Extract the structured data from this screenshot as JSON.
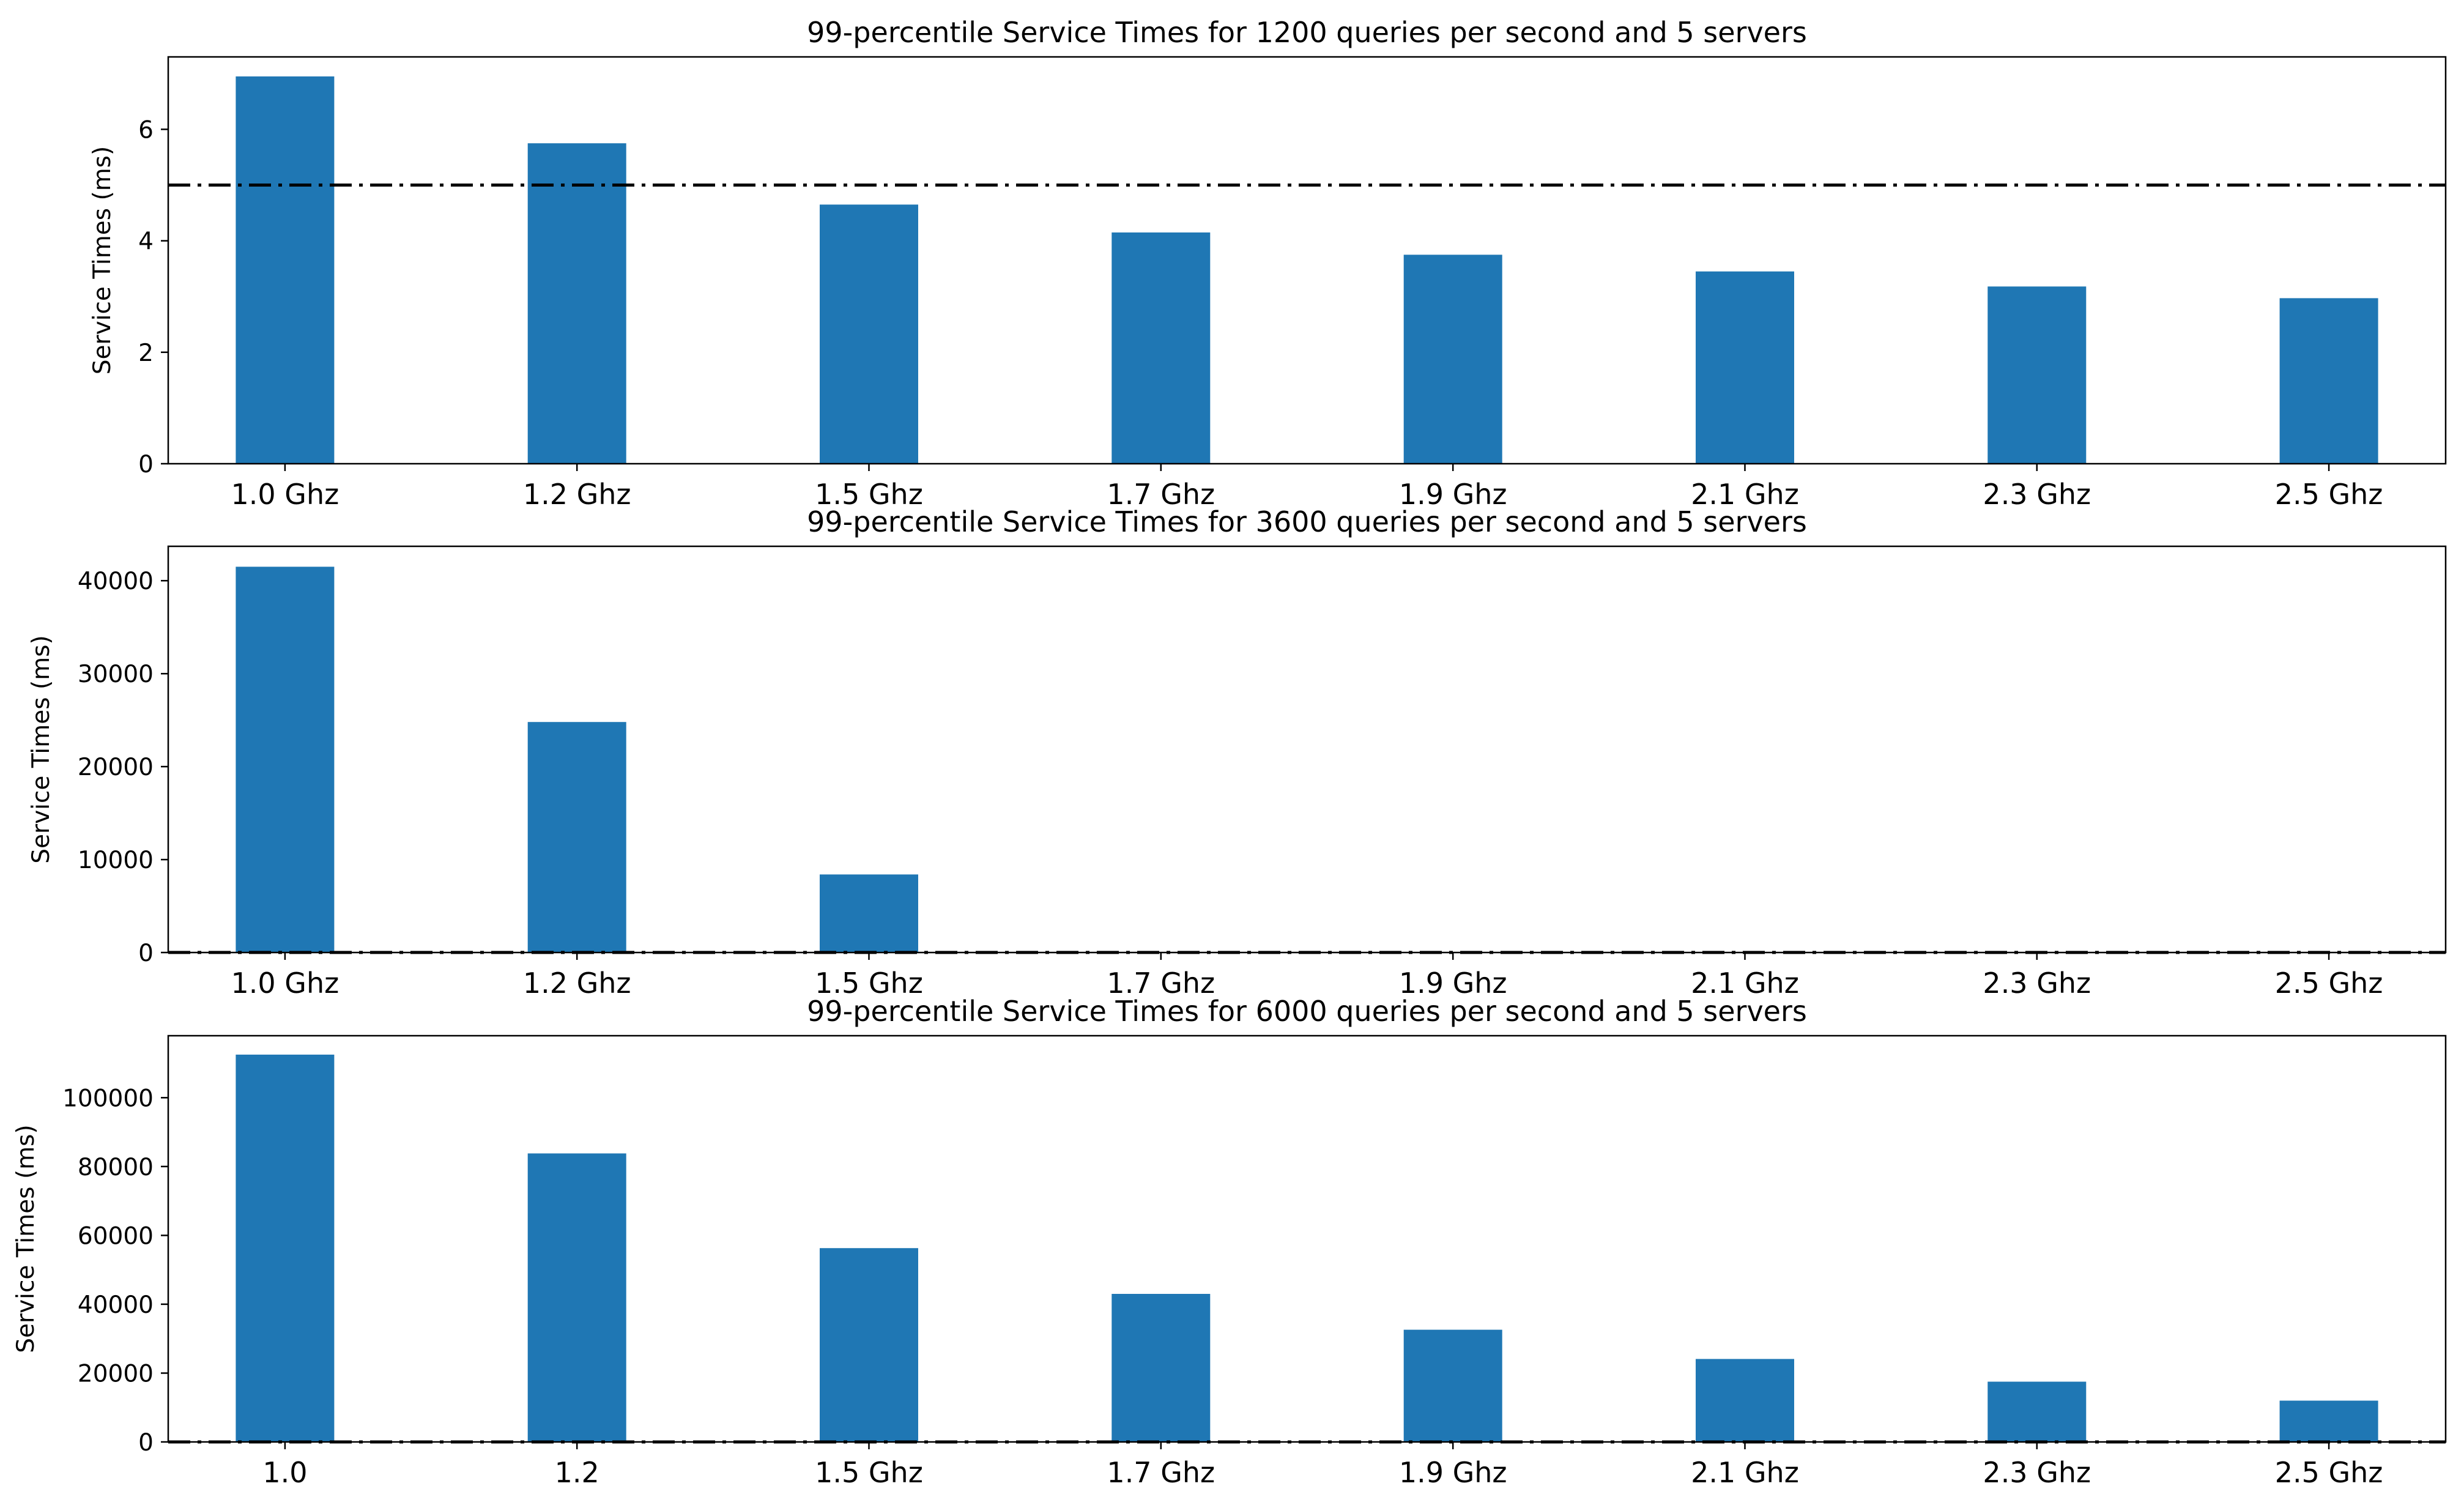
{
  "chart_data": [
    {
      "type": "bar",
      "title": "99-percentile Service Times for 1200 queries per second and 5 servers",
      "ylabel": "Service Times (ms)",
      "xlabel": "",
      "categories": [
        "1.0 Ghz",
        "1.2 Ghz",
        "1.5 Ghz",
        "1.7 Ghz",
        "1.9 Ghz",
        "2.1 Ghz",
        "2.3 Ghz",
        "2.5 Ghz"
      ],
      "values": [
        6.95,
        5.75,
        4.65,
        4.15,
        3.75,
        3.45,
        3.18,
        2.97
      ],
      "reference_line": 5,
      "ylim": [
        0,
        7.3
      ],
      "yticks": [
        0,
        2,
        4,
        6
      ],
      "ytick_labels": [
        "0",
        "2",
        "4",
        "6"
      ],
      "grid": false,
      "bar_color": "#1f77b4"
    },
    {
      "type": "bar",
      "title": "99-percentile Service Times for 3600 queries per second and 5 servers",
      "ylabel": "Service Times (ms)",
      "xlabel": "",
      "categories": [
        "1.0 Ghz",
        "1.2 Ghz",
        "1.5 Ghz",
        "1.7 Ghz",
        "1.9 Ghz",
        "2.1 Ghz",
        "2.3 Ghz",
        "2.5 Ghz"
      ],
      "values": [
        41500,
        24800,
        8400,
        0,
        0,
        0,
        0,
        0
      ],
      "reference_line": 5,
      "ylim": [
        0,
        43700
      ],
      "yticks": [
        0,
        10000,
        20000,
        30000,
        40000
      ],
      "ytick_labels": [
        "0",
        "10000",
        "20000",
        "30000",
        "40000"
      ],
      "grid": false,
      "bar_color": "#1f77b4"
    },
    {
      "type": "bar",
      "title": "99-percentile Service Times for 6000 queries per second and 5 servers",
      "ylabel": "Service Times (ms)",
      "xlabel": "",
      "categories": [
        "1.0",
        "1.2",
        "1.5 Ghz",
        "1.7 Ghz",
        "1.9 Ghz",
        "2.1 Ghz",
        "2.3 Ghz",
        "2.5 Ghz"
      ],
      "values": [
        112500,
        83800,
        56300,
        43000,
        32600,
        24100,
        17500,
        12000
      ],
      "reference_line": 5,
      "ylim": [
        0,
        118000
      ],
      "yticks": [
        0,
        20000,
        40000,
        60000,
        80000,
        100000
      ],
      "ytick_labels": [
        "0",
        "20000",
        "40000",
        "60000",
        "80000",
        "100000"
      ],
      "grid": false,
      "bar_color": "#1f77b4"
    }
  ]
}
